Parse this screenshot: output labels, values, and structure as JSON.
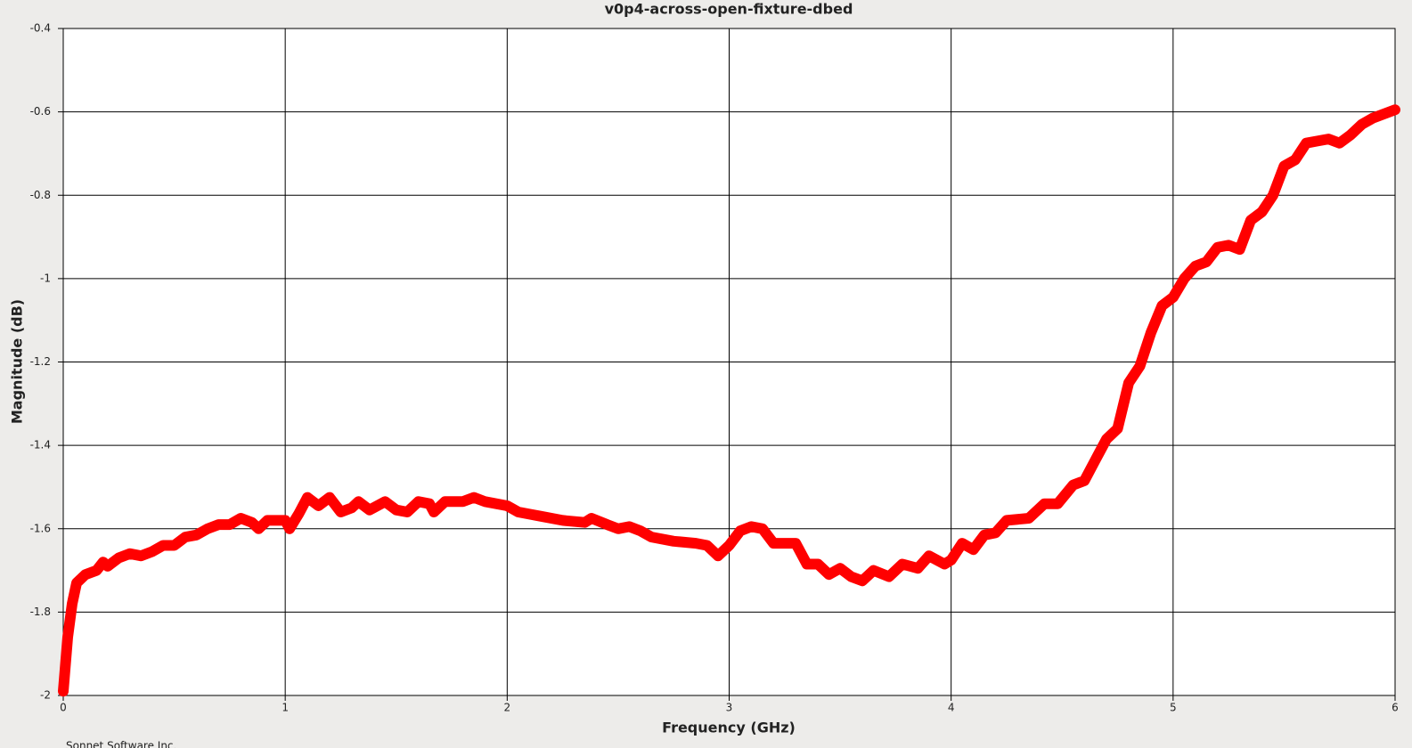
{
  "chart_data": {
    "type": "line",
    "title": "v0p4-across-open-fixture-dbed",
    "x_label": "Frequency (GHz)",
    "y_label": "Magnitude (dB)",
    "footer": "Sonnet Software Inc.",
    "xlim": [
      0,
      6
    ],
    "ylim": [
      -2,
      -0.4
    ],
    "xticks": [
      0,
      1,
      2,
      3,
      4,
      5,
      6
    ],
    "yticks": [
      -2,
      -1.8,
      -1.6,
      -1.4,
      -1.2,
      -1,
      -0.8,
      -0.6,
      -0.4
    ],
    "grid": true,
    "x": [
      0,
      0.02,
      0.04,
      0.06,
      0.1,
      0.15,
      0.18,
      0.2,
      0.25,
      0.3,
      0.35,
      0.4,
      0.45,
      0.5,
      0.55,
      0.6,
      0.65,
      0.7,
      0.75,
      0.8,
      0.85,
      0.88,
      0.92,
      1.0,
      1.02,
      1.06,
      1.1,
      1.15,
      1.2,
      1.25,
      1.3,
      1.33,
      1.38,
      1.45,
      1.5,
      1.55,
      1.6,
      1.65,
      1.67,
      1.72,
      1.8,
      1.85,
      1.9,
      2.0,
      2.05,
      2.1,
      2.15,
      2.25,
      2.35,
      2.38,
      2.45,
      2.5,
      2.55,
      2.6,
      2.65,
      2.75,
      2.85,
      2.9,
      2.95,
      3.0,
      3.05,
      3.1,
      3.15,
      3.2,
      3.3,
      3.35,
      3.4,
      3.45,
      3.5,
      3.55,
      3.6,
      3.65,
      3.72,
      3.78,
      3.85,
      3.9,
      3.97,
      4.0,
      4.05,
      4.1,
      4.15,
      4.2,
      4.25,
      4.35,
      4.42,
      4.48,
      4.55,
      4.6,
      4.65,
      4.7,
      4.75,
      4.8,
      4.85,
      4.9,
      4.95,
      5.0,
      5.05,
      5.1,
      5.15,
      5.2,
      5.25,
      5.3,
      5.35,
      5.4,
      5.45,
      5.5,
      5.55,
      5.6,
      5.65,
      5.7,
      5.75,
      5.8,
      5.85,
      5.9,
      6.0
    ],
    "series": [
      {
        "name": "v0p4-across-open-fixture-dbed",
        "color": "#ff0000",
        "values": [
          -1.99,
          -1.86,
          -1.78,
          -1.73,
          -1.71,
          -1.7,
          -1.68,
          -1.69,
          -1.67,
          -1.66,
          -1.665,
          -1.655,
          -1.64,
          -1.64,
          -1.62,
          -1.615,
          -1.6,
          -1.59,
          -1.59,
          -1.575,
          -1.585,
          -1.6,
          -1.58,
          -1.58,
          -1.6,
          -1.565,
          -1.525,
          -1.545,
          -1.525,
          -1.56,
          -1.55,
          -1.535,
          -1.555,
          -1.535,
          -1.555,
          -1.56,
          -1.535,
          -1.54,
          -1.56,
          -1.535,
          -1.535,
          -1.525,
          -1.535,
          -1.545,
          -1.56,
          -1.565,
          -1.57,
          -1.58,
          -1.585,
          -1.575,
          -1.59,
          -1.6,
          -1.595,
          -1.605,
          -1.62,
          -1.63,
          -1.635,
          -1.64,
          -1.665,
          -1.64,
          -1.605,
          -1.595,
          -1.6,
          -1.635,
          -1.635,
          -1.685,
          -1.685,
          -1.71,
          -1.695,
          -1.715,
          -1.725,
          -1.7,
          -1.715,
          -1.685,
          -1.695,
          -1.665,
          -1.685,
          -1.675,
          -1.635,
          -1.65,
          -1.615,
          -1.61,
          -1.58,
          -1.575,
          -1.54,
          -1.54,
          -1.495,
          -1.485,
          -1.435,
          -1.385,
          -1.36,
          -1.25,
          -1.21,
          -1.13,
          -1.065,
          -1.045,
          -1.0,
          -0.97,
          -0.96,
          -0.925,
          -0.92,
          -0.93,
          -0.86,
          -0.84,
          -0.8,
          -0.73,
          -0.715,
          -0.675,
          -0.67,
          -0.665,
          -0.675,
          -0.655,
          -0.63,
          -0.615,
          -0.595
        ]
      }
    ]
  }
}
